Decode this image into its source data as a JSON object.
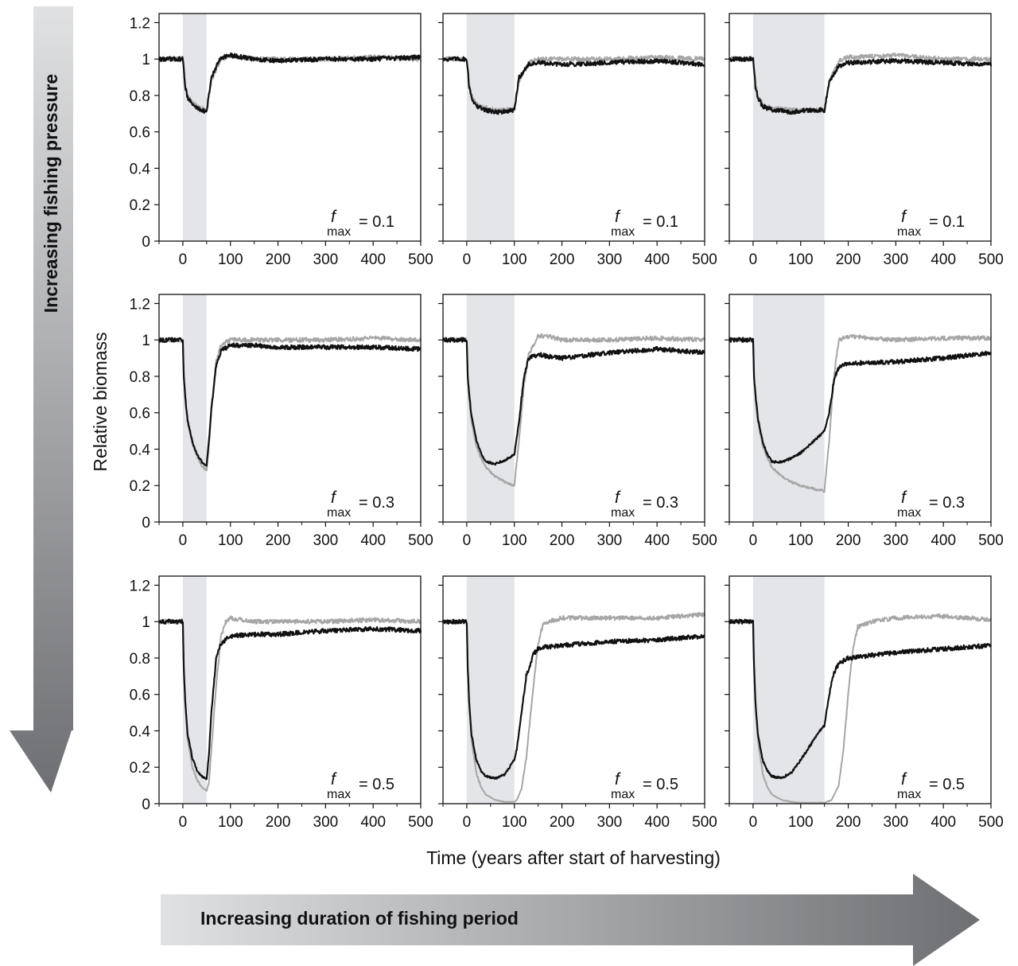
{
  "figure": {
    "ylabel": "Relative biomass",
    "xlabel": "Time (years after start of harvesting)",
    "vertical_arrow_label": "Increasing fishing pressure",
    "horizontal_arrow_label": "Increasing duration of fishing period",
    "fmax_symbol": "f",
    "fmax_subscript": "max",
    "colors": {
      "black_series": "#111111",
      "gray_series": "#a6a6a6",
      "harvest_shading": "#e3e5e8",
      "arrow_dark": "#6e6f72",
      "arrow_light": "#e0e1e3"
    }
  },
  "chart_data": [
    {
      "type": "line",
      "row": 1,
      "col": 1,
      "fmax_value": "= 0.1",
      "harvest_period": [
        0,
        50
      ],
      "xlim": [
        -50,
        500
      ],
      "ylim": [
        0,
        1.25
      ],
      "xticks": [
        0,
        100,
        200,
        300,
        400,
        500
      ],
      "yticks": [
        0,
        0.2,
        0.4,
        0.6,
        0.8,
        1,
        1.2
      ],
      "ytick_labels": [
        "0",
        "0.2",
        "0.4",
        "0.6",
        "0.8",
        "1",
        "1.2"
      ],
      "series": [
        {
          "color": "gray",
          "x": [
            -50,
            0,
            5,
            10,
            20,
            30,
            40,
            50,
            60,
            80,
            100,
            150,
            200,
            300,
            400,
            500
          ],
          "y": [
            1.0,
            1.0,
            0.86,
            0.8,
            0.76,
            0.74,
            0.73,
            0.72,
            0.88,
            1.0,
            1.02,
            1.0,
            1.0,
            1.0,
            1.01,
            1.0
          ]
        },
        {
          "color": "black",
          "x": [
            -50,
            0,
            5,
            10,
            20,
            30,
            40,
            50,
            60,
            80,
            100,
            150,
            200,
            300,
            400,
            500
          ],
          "y": [
            1.0,
            1.0,
            0.85,
            0.79,
            0.75,
            0.73,
            0.72,
            0.71,
            0.9,
            1.01,
            1.02,
            1.0,
            0.99,
            1.0,
            1.0,
            1.01
          ]
        }
      ]
    },
    {
      "type": "line",
      "row": 1,
      "col": 2,
      "fmax_value": "= 0.1",
      "harvest_period": [
        0,
        100
      ],
      "xlim": [
        -50,
        500
      ],
      "ylim": [
        0,
        1.25
      ],
      "xticks": [
        0,
        100,
        200,
        300,
        400,
        500
      ],
      "yticks": [
        0,
        0.2,
        0.4,
        0.6,
        0.8,
        1,
        1.2
      ],
      "ytick_labels": [],
      "series": [
        {
          "color": "gray",
          "x": [
            -50,
            0,
            5,
            10,
            20,
            40,
            60,
            80,
            100,
            110,
            130,
            150,
            200,
            300,
            400,
            500
          ],
          "y": [
            1.0,
            1.0,
            0.86,
            0.8,
            0.75,
            0.73,
            0.72,
            0.72,
            0.72,
            0.88,
            0.98,
            1.0,
            1.0,
            1.0,
            1.01,
            1.0
          ]
        },
        {
          "color": "black",
          "x": [
            -50,
            0,
            5,
            10,
            20,
            40,
            60,
            80,
            100,
            110,
            130,
            150,
            200,
            300,
            400,
            500
          ],
          "y": [
            1.0,
            1.0,
            0.85,
            0.79,
            0.74,
            0.72,
            0.71,
            0.71,
            0.72,
            0.9,
            0.97,
            0.98,
            0.97,
            0.98,
            0.99,
            0.97
          ]
        }
      ]
    },
    {
      "type": "line",
      "row": 1,
      "col": 3,
      "fmax_value": "= 0.1",
      "harvest_period": [
        0,
        150
      ],
      "xlim": [
        -50,
        500
      ],
      "ylim": [
        0,
        1.25
      ],
      "xticks": [
        0,
        100,
        200,
        300,
        400,
        500
      ],
      "yticks": [
        0,
        0.2,
        0.4,
        0.6,
        0.8,
        1,
        1.2
      ],
      "ytick_labels": [],
      "series": [
        {
          "color": "gray",
          "x": [
            -50,
            0,
            5,
            10,
            20,
            40,
            80,
            120,
            150,
            160,
            180,
            200,
            300,
            400,
            500
          ],
          "y": [
            1.0,
            1.0,
            0.86,
            0.8,
            0.75,
            0.73,
            0.72,
            0.72,
            0.72,
            0.88,
            0.99,
            1.01,
            1.02,
            1.0,
            1.0
          ]
        },
        {
          "color": "black",
          "x": [
            -50,
            0,
            5,
            10,
            20,
            40,
            80,
            120,
            150,
            160,
            180,
            200,
            300,
            400,
            500
          ],
          "y": [
            1.0,
            1.0,
            0.85,
            0.79,
            0.74,
            0.72,
            0.71,
            0.72,
            0.72,
            0.88,
            0.96,
            0.98,
            0.99,
            0.98,
            0.97
          ]
        }
      ]
    },
    {
      "type": "line",
      "row": 2,
      "col": 1,
      "fmax_value": "= 0.3",
      "harvest_period": [
        0,
        50
      ],
      "xlim": [
        -50,
        500
      ],
      "ylim": [
        0,
        1.25
      ],
      "xticks": [
        0,
        100,
        200,
        300,
        400,
        500
      ],
      "yticks": [
        0,
        0.2,
        0.4,
        0.6,
        0.8,
        1,
        1.2
      ],
      "ytick_labels": [
        "0",
        "0.2",
        "0.4",
        "0.6",
        "0.8",
        "1",
        "1.2"
      ],
      "series": [
        {
          "color": "gray",
          "x": [
            -50,
            0,
            2,
            5,
            10,
            20,
            30,
            40,
            50,
            55,
            60,
            70,
            80,
            100,
            150,
            200,
            300,
            400,
            500
          ],
          "y": [
            1.0,
            1.0,
            0.8,
            0.68,
            0.55,
            0.43,
            0.36,
            0.31,
            0.28,
            0.42,
            0.62,
            0.88,
            0.97,
            1.0,
            1.0,
            1.0,
            1.0,
            1.01,
            1.0
          ]
        },
        {
          "color": "black",
          "x": [
            -50,
            0,
            2,
            5,
            10,
            20,
            30,
            40,
            50,
            55,
            60,
            70,
            80,
            100,
            150,
            200,
            300,
            400,
            500
          ],
          "y": [
            1.0,
            1.0,
            0.8,
            0.68,
            0.56,
            0.44,
            0.37,
            0.33,
            0.31,
            0.45,
            0.62,
            0.86,
            0.94,
            0.97,
            0.97,
            0.96,
            0.96,
            0.96,
            0.95
          ]
        }
      ]
    },
    {
      "type": "line",
      "row": 2,
      "col": 2,
      "fmax_value": "= 0.3",
      "harvest_period": [
        0,
        100
      ],
      "xlim": [
        -50,
        500
      ],
      "ylim": [
        0,
        1.25
      ],
      "xticks": [
        0,
        100,
        200,
        300,
        400,
        500
      ],
      "yticks": [
        0,
        0.2,
        0.4,
        0.6,
        0.8,
        1,
        1.2
      ],
      "ytick_labels": [],
      "series": [
        {
          "color": "gray",
          "x": [
            -50,
            0,
            2,
            5,
            10,
            20,
            30,
            40,
            60,
            80,
            100,
            110,
            120,
            130,
            150,
            170,
            200,
            300,
            400,
            500
          ],
          "y": [
            1.0,
            1.0,
            0.8,
            0.68,
            0.55,
            0.42,
            0.35,
            0.3,
            0.25,
            0.22,
            0.2,
            0.45,
            0.75,
            0.92,
            1.02,
            1.02,
            1.0,
            1.0,
            1.01,
            1.0
          ]
        },
        {
          "color": "black",
          "x": [
            -50,
            0,
            2,
            5,
            10,
            20,
            30,
            40,
            60,
            80,
            100,
            110,
            120,
            130,
            150,
            170,
            200,
            300,
            400,
            500
          ],
          "y": [
            1.0,
            1.0,
            0.8,
            0.7,
            0.58,
            0.45,
            0.38,
            0.33,
            0.32,
            0.34,
            0.37,
            0.55,
            0.8,
            0.9,
            0.92,
            0.91,
            0.9,
            0.93,
            0.95,
            0.93
          ]
        }
      ]
    },
    {
      "type": "line",
      "row": 2,
      "col": 3,
      "fmax_value": "= 0.3",
      "harvest_period": [
        0,
        150
      ],
      "xlim": [
        -50,
        500
      ],
      "ylim": [
        0,
        1.25
      ],
      "xticks": [
        0,
        100,
        200,
        300,
        400,
        500
      ],
      "yticks": [
        0,
        0.2,
        0.4,
        0.6,
        0.8,
        1,
        1.2
      ],
      "ytick_labels": [],
      "series": [
        {
          "color": "gray",
          "x": [
            -50,
            0,
            2,
            5,
            10,
            20,
            30,
            40,
            60,
            80,
            100,
            130,
            150,
            160,
            170,
            180,
            200,
            300,
            400,
            500
          ],
          "y": [
            1.0,
            1.0,
            0.8,
            0.68,
            0.55,
            0.42,
            0.35,
            0.3,
            0.25,
            0.22,
            0.2,
            0.18,
            0.17,
            0.45,
            0.8,
            1.0,
            1.02,
            1.0,
            1.01,
            1.01
          ]
        },
        {
          "color": "black",
          "x": [
            -50,
            0,
            2,
            5,
            10,
            20,
            30,
            40,
            60,
            80,
            100,
            130,
            150,
            160,
            170,
            180,
            200,
            300,
            400,
            500
          ],
          "y": [
            1.0,
            1.0,
            0.8,
            0.7,
            0.57,
            0.44,
            0.37,
            0.33,
            0.33,
            0.35,
            0.38,
            0.45,
            0.5,
            0.6,
            0.78,
            0.85,
            0.87,
            0.88,
            0.9,
            0.93
          ]
        }
      ]
    },
    {
      "type": "line",
      "row": 3,
      "col": 1,
      "fmax_value": "= 0.5",
      "harvest_period": [
        0,
        50
      ],
      "xlim": [
        -50,
        500
      ],
      "ylim": [
        0,
        1.25
      ],
      "xticks": [
        0,
        100,
        200,
        300,
        400,
        500
      ],
      "yticks": [
        0,
        0.2,
        0.4,
        0.6,
        0.8,
        1,
        1.2
      ],
      "ytick_labels": [
        "0",
        "0.2",
        "0.4",
        "0.6",
        "0.8",
        "1",
        "1.2"
      ],
      "series": [
        {
          "color": "gray",
          "x": [
            -50,
            0,
            2,
            5,
            10,
            20,
            30,
            40,
            50,
            55,
            60,
            70,
            80,
            90,
            100,
            150,
            200,
            300,
            400,
            500
          ],
          "y": [
            1.0,
            1.0,
            0.75,
            0.55,
            0.35,
            0.2,
            0.13,
            0.09,
            0.07,
            0.12,
            0.3,
            0.65,
            0.92,
            1.0,
            1.02,
            1.0,
            1.0,
            1.0,
            1.01,
            1.0
          ]
        },
        {
          "color": "black",
          "x": [
            -50,
            0,
            2,
            5,
            10,
            20,
            30,
            40,
            50,
            55,
            60,
            70,
            80,
            90,
            100,
            150,
            200,
            300,
            400,
            500
          ],
          "y": [
            1.0,
            1.0,
            0.75,
            0.56,
            0.38,
            0.25,
            0.18,
            0.15,
            0.13,
            0.28,
            0.5,
            0.8,
            0.88,
            0.9,
            0.92,
            0.93,
            0.93,
            0.95,
            0.96,
            0.95
          ]
        }
      ]
    },
    {
      "type": "line",
      "row": 3,
      "col": 2,
      "fmax_value": "= 0.5",
      "harvest_period": [
        0,
        100
      ],
      "xlim": [
        -50,
        500
      ],
      "ylim": [
        0,
        1.25
      ],
      "xticks": [
        0,
        100,
        200,
        300,
        400,
        500
      ],
      "yticks": [
        0,
        0.2,
        0.4,
        0.6,
        0.8,
        1,
        1.2
      ],
      "ytick_labels": [],
      "series": [
        {
          "color": "gray",
          "x": [
            -50,
            0,
            2,
            5,
            10,
            20,
            30,
            40,
            60,
            80,
            100,
            105,
            115,
            125,
            140,
            150,
            160,
            170,
            200,
            300,
            400,
            500
          ],
          "y": [
            1.0,
            1.0,
            0.75,
            0.55,
            0.35,
            0.17,
            0.09,
            0.05,
            0.02,
            0.01,
            0.01,
            0.02,
            0.08,
            0.25,
            0.65,
            0.88,
            0.98,
            1.0,
            1.02,
            1.02,
            1.02,
            1.04
          ]
        },
        {
          "color": "black",
          "x": [
            -50,
            0,
            2,
            5,
            10,
            20,
            30,
            40,
            60,
            80,
            100,
            105,
            115,
            125,
            140,
            150,
            160,
            170,
            200,
            300,
            400,
            500
          ],
          "y": [
            1.0,
            1.0,
            0.75,
            0.56,
            0.38,
            0.24,
            0.18,
            0.15,
            0.14,
            0.16,
            0.24,
            0.3,
            0.5,
            0.7,
            0.82,
            0.85,
            0.86,
            0.86,
            0.87,
            0.89,
            0.9,
            0.92
          ]
        }
      ]
    },
    {
      "type": "line",
      "row": 3,
      "col": 3,
      "fmax_value": "= 0.5",
      "harvest_period": [
        0,
        150
      ],
      "xlim": [
        -50,
        500
      ],
      "ylim": [
        0,
        1.25
      ],
      "xticks": [
        0,
        100,
        200,
        300,
        400,
        500
      ],
      "yticks": [
        0,
        0.2,
        0.4,
        0.6,
        0.8,
        1,
        1.2
      ],
      "ytick_labels": [],
      "series": [
        {
          "color": "gray",
          "x": [
            -50,
            0,
            2,
            5,
            10,
            20,
            30,
            40,
            60,
            80,
            100,
            150,
            165,
            180,
            190,
            200,
            210,
            220,
            250,
            300,
            400,
            500
          ],
          "y": [
            1.0,
            1.0,
            0.75,
            0.55,
            0.35,
            0.17,
            0.09,
            0.05,
            0.02,
            0.01,
            0.005,
            0.005,
            0.02,
            0.1,
            0.3,
            0.6,
            0.85,
            0.97,
            1.0,
            1.02,
            1.03,
            1.01
          ]
        },
        {
          "color": "black",
          "x": [
            -50,
            0,
            2,
            5,
            10,
            20,
            30,
            40,
            60,
            80,
            100,
            120,
            140,
            150,
            160,
            170,
            180,
            200,
            300,
            400,
            500
          ],
          "y": [
            1.0,
            1.0,
            0.75,
            0.56,
            0.38,
            0.24,
            0.18,
            0.15,
            0.14,
            0.17,
            0.24,
            0.32,
            0.4,
            0.43,
            0.6,
            0.72,
            0.77,
            0.8,
            0.83,
            0.85,
            0.87
          ]
        }
      ]
    }
  ]
}
